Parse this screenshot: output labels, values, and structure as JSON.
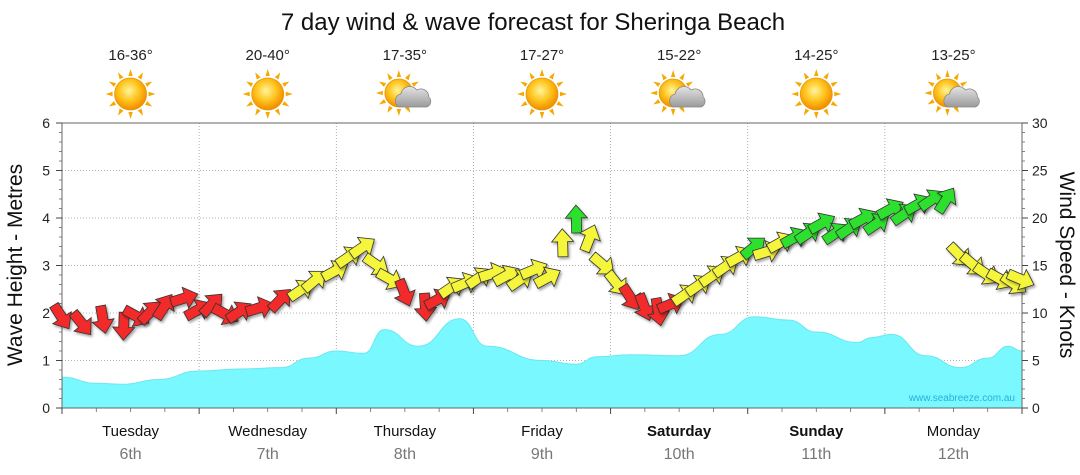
{
  "chart_data": {
    "type": "area",
    "title": "7 day wind & wave forecast for Sheringa Beach",
    "y_left_label": "Wave Height - Metres",
    "y_right_label": "Wind Speed - Knots",
    "y_left_ticks": [
      "0",
      "1",
      "2",
      "3",
      "4",
      "5",
      "6"
    ],
    "y_right_ticks": [
      "0",
      "5",
      "10",
      "15",
      "20",
      "25",
      "30"
    ],
    "ylim_left": [
      0,
      6
    ],
    "ylim_right": [
      0,
      30
    ],
    "watermark": "www.seabreeze.com.au",
    "days": [
      {
        "name": "Tuesday",
        "date": "6th",
        "temp": "16-36°",
        "icon": "sun-icon",
        "bold": false
      },
      {
        "name": "Wednesday",
        "date": "7th",
        "temp": "20-40°",
        "icon": "sun-icon",
        "bold": false
      },
      {
        "name": "Thursday",
        "date": "8th",
        "temp": "17-35°",
        "icon": "sun-cloud-icon",
        "bold": false
      },
      {
        "name": "Friday",
        "date": "9th",
        "temp": "17-27°",
        "icon": "sun-icon",
        "bold": false
      },
      {
        "name": "Saturday",
        "date": "10th",
        "temp": "15-22°",
        "icon": "sun-cloud-icon",
        "bold": true
      },
      {
        "name": "Sunday",
        "date": "11th",
        "temp": "14-25°",
        "icon": "sun-icon",
        "bold": true
      },
      {
        "name": "Monday",
        "date": "12th",
        "temp": "13-25°",
        "icon": "sun-cloud-icon",
        "bold": false
      }
    ],
    "wave_series": {
      "name": "Wave Height",
      "color": "#7af8ff",
      "points": [
        [
          0,
          0.65
        ],
        [
          0.25,
          0.52
        ],
        [
          0.45,
          0.5
        ],
        [
          0.7,
          0.6
        ],
        [
          1.0,
          0.78
        ],
        [
          1.3,
          0.82
        ],
        [
          1.6,
          0.85
        ],
        [
          1.8,
          1.05
        ],
        [
          2.0,
          1.2
        ],
        [
          2.2,
          1.15
        ],
        [
          2.35,
          1.65
        ],
        [
          2.6,
          1.3
        ],
        [
          2.9,
          1.88
        ],
        [
          3.1,
          1.3
        ],
        [
          3.5,
          1.0
        ],
        [
          3.75,
          0.92
        ],
        [
          3.9,
          1.08
        ],
        [
          4.15,
          1.12
        ],
        [
          4.5,
          1.1
        ],
        [
          4.8,
          1.55
        ],
        [
          5.05,
          1.92
        ],
        [
          5.3,
          1.85
        ],
        [
          5.5,
          1.6
        ],
        [
          5.8,
          1.38
        ],
        [
          5.9,
          1.48
        ],
        [
          6.05,
          1.55
        ],
        [
          6.3,
          1.1
        ],
        [
          6.55,
          0.85
        ],
        [
          6.75,
          1.05
        ],
        [
          6.9,
          1.3
        ],
        [
          7.0,
          1.2
        ]
      ]
    },
    "wind_series": {
      "name": "Wind Speed",
      "colors": {
        "low": "#f22a2a",
        "mid": "#f5f53a",
        "high": "#2ee02e"
      },
      "points": [
        [
          0.0,
          9.5,
          -1.0,
          "low"
        ],
        [
          0.15,
          8.8,
          -0.9,
          "low"
        ],
        [
          0.3,
          9.2,
          -1.4,
          "low"
        ],
        [
          0.45,
          8.5,
          -1.6,
          "low"
        ],
        [
          0.55,
          9.6,
          -0.5,
          "low"
        ],
        [
          0.65,
          10.2,
          0.8,
          "low"
        ],
        [
          0.75,
          10.8,
          1.0,
          "low"
        ],
        [
          0.9,
          11.6,
          0.3,
          "low"
        ],
        [
          1.0,
          10.4,
          0.5,
          "low"
        ],
        [
          1.1,
          11.0,
          0.8,
          "low"
        ],
        [
          1.2,
          9.8,
          -0.5,
          "low"
        ],
        [
          1.3,
          10.2,
          0.6,
          "low"
        ],
        [
          1.45,
          10.6,
          0.3,
          "low"
        ],
        [
          1.6,
          11.5,
          0.8,
          "low"
        ],
        [
          1.75,
          12.5,
          0.6,
          "mid"
        ],
        [
          1.85,
          13.5,
          0.7,
          "mid"
        ],
        [
          2.0,
          14.5,
          0.5,
          "mid"
        ],
        [
          2.1,
          16.0,
          0.6,
          "mid"
        ],
        [
          2.2,
          17.0,
          0.6,
          "mid"
        ],
        [
          2.3,
          15.0,
          -0.6,
          "mid"
        ],
        [
          2.4,
          13.5,
          -0.5,
          "mid"
        ],
        [
          2.5,
          12.0,
          -1.2,
          "low"
        ],
        [
          2.65,
          10.5,
          -1.5,
          "low"
        ],
        [
          2.75,
          11.5,
          0.5,
          "low"
        ],
        [
          2.85,
          12.8,
          0.6,
          "mid"
        ],
        [
          2.95,
          13.2,
          0.4,
          "mid"
        ],
        [
          3.05,
          13.8,
          0.6,
          "mid"
        ],
        [
          3.15,
          14.2,
          0.3,
          "mid"
        ],
        [
          3.25,
          14.0,
          0.5,
          "mid"
        ],
        [
          3.35,
          13.6,
          0.6,
          "mid"
        ],
        [
          3.45,
          14.6,
          0.4,
          "mid"
        ],
        [
          3.55,
          13.8,
          0.5,
          "mid"
        ],
        [
          3.65,
          17.5,
          1.6,
          "mid"
        ],
        [
          3.75,
          20.0,
          1.6,
          "high"
        ],
        [
          3.85,
          18.0,
          1.2,
          "mid"
        ],
        [
          3.95,
          15.0,
          -0.7,
          "mid"
        ],
        [
          4.05,
          13.0,
          -0.9,
          "mid"
        ],
        [
          4.15,
          11.5,
          -1.0,
          "low"
        ],
        [
          4.25,
          10.5,
          -1.2,
          "low"
        ],
        [
          4.35,
          10.0,
          -1.4,
          "low"
        ],
        [
          4.45,
          11.0,
          0.4,
          "low"
        ],
        [
          4.55,
          12.0,
          0.6,
          "mid"
        ],
        [
          4.65,
          13.0,
          0.6,
          "mid"
        ],
        [
          4.75,
          14.0,
          0.6,
          "mid"
        ],
        [
          4.85,
          15.0,
          0.6,
          "mid"
        ],
        [
          4.95,
          16.0,
          0.5,
          "mid"
        ],
        [
          5.05,
          17.0,
          0.7,
          "high"
        ],
        [
          5.15,
          16.5,
          0.3,
          "mid"
        ],
        [
          5.25,
          17.5,
          0.5,
          "mid"
        ],
        [
          5.35,
          18.0,
          0.5,
          "high"
        ],
        [
          5.45,
          18.5,
          0.6,
          "high"
        ],
        [
          5.55,
          19.5,
          0.5,
          "high"
        ],
        [
          5.65,
          18.5,
          0.6,
          "high"
        ],
        [
          5.75,
          19.0,
          0.6,
          "high"
        ],
        [
          5.85,
          20.0,
          0.5,
          "high"
        ],
        [
          5.95,
          19.5,
          0.6,
          "high"
        ],
        [
          6.05,
          21.0,
          0.5,
          "high"
        ],
        [
          6.15,
          20.5,
          0.6,
          "high"
        ],
        [
          6.25,
          21.5,
          0.5,
          "high"
        ],
        [
          6.35,
          22.0,
          0.6,
          "high"
        ],
        [
          6.45,
          22.0,
          1.0,
          "high"
        ],
        [
          6.55,
          16.0,
          -0.8,
          "mid"
        ],
        [
          6.65,
          15.0,
          -0.7,
          "mid"
        ],
        [
          6.75,
          14.0,
          -0.6,
          "mid"
        ],
        [
          6.85,
          13.5,
          -0.5,
          "mid"
        ],
        [
          6.95,
          13.0,
          -0.6,
          "mid"
        ],
        [
          7.0,
          13.5,
          -0.4,
          "mid"
        ]
      ]
    }
  }
}
